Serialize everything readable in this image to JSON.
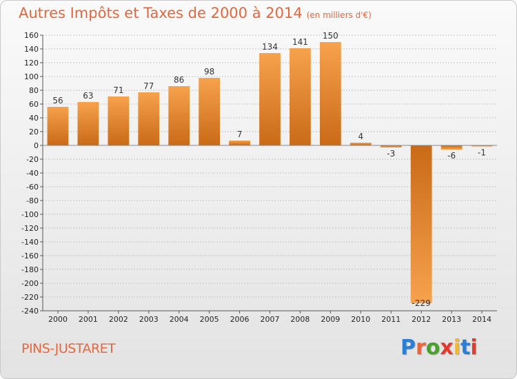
{
  "header": {
    "title": "Autres Impôts et Taxes de 2000 à 2014",
    "subtitle": "(en milliers d'€)"
  },
  "footer": {
    "location": "PINS-JUSTARET",
    "brand": {
      "text": "Proxiti",
      "letter_colors": [
        "#2a7fd4",
        "#e8663b",
        "#4aa02c",
        "#e23b2e",
        "#f2b632",
        "#2a7fd4",
        "#e23b2e"
      ]
    }
  },
  "chart_data": {
    "type": "bar",
    "categories": [
      "2000",
      "2001",
      "2002",
      "2003",
      "2004",
      "2005",
      "2006",
      "2007",
      "2008",
      "2009",
      "2010",
      "2011",
      "2012",
      "2013",
      "2014"
    ],
    "values": [
      56,
      63,
      71,
      77,
      86,
      98,
      7,
      134,
      141,
      150,
      4,
      -3,
      -229,
      -6,
      -1
    ],
    "value_labels": [
      "56",
      "63",
      "71",
      "77",
      "86",
      "98",
      "7",
      "134",
      "141",
      "150",
      "4",
      "-3",
      "-229",
      "-6",
      "-1"
    ],
    "ylim": [
      -240,
      160
    ],
    "yticks": [
      160,
      140,
      120,
      100,
      80,
      60,
      40,
      20,
      0,
      -20,
      -40,
      -60,
      -80,
      -100,
      -120,
      -140,
      -160,
      -180,
      -200,
      -220,
      -240
    ],
    "ytick_labels": [
      "160",
      "140",
      "120",
      "100",
      "80",
      "60",
      "40",
      "20",
      "0",
      "-20",
      "-40",
      "-60",
      "-80",
      "-100",
      "-120",
      "-140",
      "-160",
      "-180",
      "-200",
      "-220",
      "-240"
    ],
    "grid": "horizontal dashed",
    "bar_color_light": "#f7a24d",
    "bar_color_dark": "#c96a17"
  }
}
